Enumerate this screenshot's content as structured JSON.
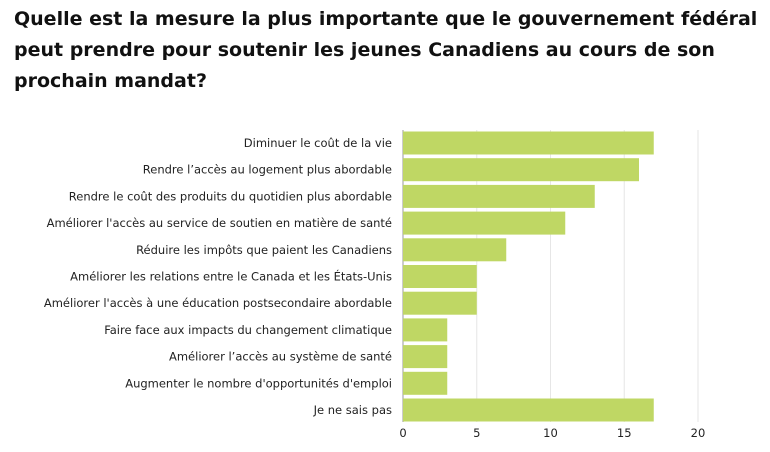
{
  "chart_data": {
    "type": "bar",
    "orientation": "horizontal",
    "title": "Quelle est la mesure la plus importante que le gouvernement fédéral peut prendre pour soutenir les jeunes Canadiens au cours de son prochain mandat?",
    "categories": [
      "Diminuer le coût de la vie",
      "Rendre l’accès au logement plus abordable",
      "Rendre le coût des produits du quotidien plus abordable",
      "Améliorer l'accès au service de soutien en matière de santé",
      "Réduire les impôts que paient les Canadiens",
      "Améliorer les relations entre le Canada et les États-Unis",
      "Améliorer l'accès à une éducation postsecondaire abordable",
      "Faire face aux impacts du changement climatique",
      "Améliorer l’accès au système de santé",
      "Augmenter le nombre d'opportunités d'emploi",
      "Je ne sais pas"
    ],
    "values": [
      17,
      16,
      13,
      11,
      7,
      5,
      5,
      3,
      3,
      3,
      17
    ],
    "xlim": [
      0,
      20
    ],
    "xticks": [
      0,
      5,
      10,
      15,
      20
    ],
    "bar_color": "#bfd764",
    "grid": true
  }
}
